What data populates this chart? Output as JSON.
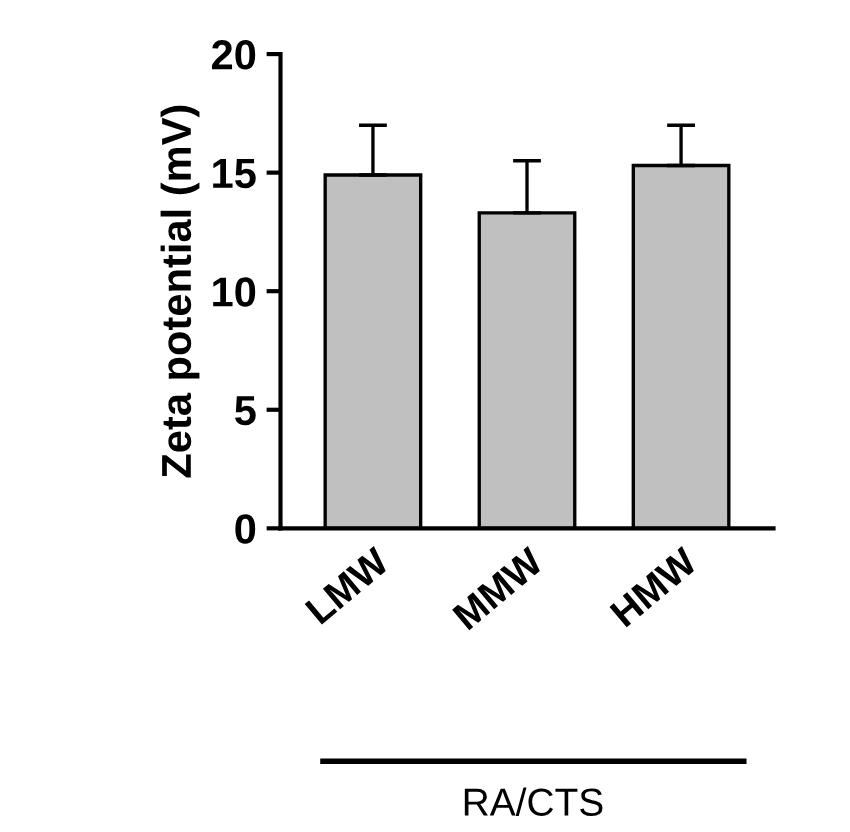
{
  "chart_data": {
    "type": "bar",
    "ylabel": "Zeta potential (mV)",
    "categories": [
      "LMW",
      "MMW",
      "HMW"
    ],
    "values": [
      14.9,
      13.3,
      15.3
    ],
    "errors": [
      [
        14.9,
        17.0
      ],
      [
        13.3,
        15.5
      ],
      [
        15.3,
        17.0
      ]
    ],
    "color": "#c0c0c0",
    "ylim": [
      0,
      20
    ],
    "yticks": [
      0,
      5,
      10,
      15,
      20
    ],
    "grid": false,
    "annotations": [
      "RA/CTS"
    ]
  }
}
